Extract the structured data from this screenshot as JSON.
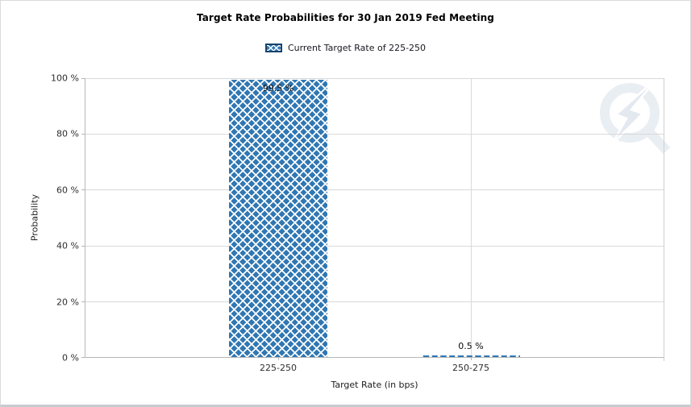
{
  "window": {
    "background": "#ffffff",
    "border_color": "#dadada",
    "bottom_border_color": "#c7cbce"
  },
  "chart_data": {
    "type": "bar",
    "title": "Target Rate Probabilities for 30 Jan 2019 Fed Meeting",
    "legend": {
      "position": "top",
      "items": [
        {
          "label": "Current Target Rate of 225-250",
          "swatch": "blue-diamond-crosshatch",
          "swatch_border": "#17426b"
        }
      ]
    },
    "categories": [
      "225-250",
      "250-275"
    ],
    "series": [
      {
        "name": "Current Target Rate of 225-250",
        "values": [
          99.5,
          0.5
        ]
      }
    ],
    "values": [
      99.5,
      0.5
    ],
    "bar_labels": [
      "99.5 %",
      "0.5 %"
    ],
    "xlabel": "Target Rate (in bps)",
    "ylabel": "Probability",
    "ylim": [
      0,
      100
    ],
    "ytick_step": 20,
    "yticks_top_to_bottom": [
      "100 %",
      "80 %",
      "60 %",
      "40 %",
      "20 %",
      "0 %"
    ],
    "grid": true,
    "bar_color": "#3077b3",
    "bar_pattern": "white-diamond-crosshatch",
    "gridline_color": "#d9d9d9",
    "axis_color": "#b7b7b7"
  },
  "watermark": {
    "name": "q-lightning-logo",
    "color": "#e9eef3"
  }
}
